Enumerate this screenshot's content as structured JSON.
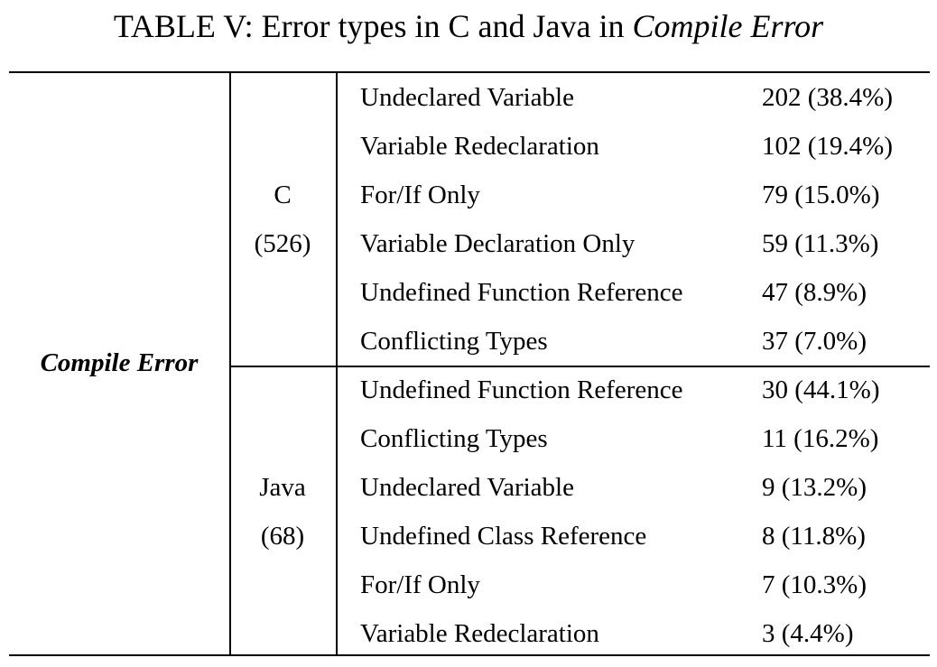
{
  "caption": {
    "prefix": "TABLE V: Error types in C and Java in ",
    "italic": "Compile Error"
  },
  "table": {
    "category": "Compile Error",
    "groups": [
      {
        "language": "C",
        "total": "(526)",
        "rows": [
          {
            "type": "Undeclared Variable",
            "count": "202 (38.4%)"
          },
          {
            "type": "Variable Redeclaration",
            "count": "102 (19.4%)"
          },
          {
            "type": "For/If Only",
            "count": "79 (15.0%)"
          },
          {
            "type": "Variable Declaration Only",
            "count": "59 (11.3%)"
          },
          {
            "type": "Undefined Function Reference",
            "count": "47 (8.9%)"
          },
          {
            "type": "Conflicting Types",
            "count": "37 (7.0%)"
          }
        ]
      },
      {
        "language": "Java",
        "total": "(68)",
        "rows": [
          {
            "type": "Undefined Function Reference",
            "count": "30 (44.1%)"
          },
          {
            "type": "Conflicting Types",
            "count": "11 (16.2%)"
          },
          {
            "type": "Undeclared Variable",
            "count": "9 (13.2%)"
          },
          {
            "type": "Undefined Class Reference",
            "count": "8 (11.8%)"
          },
          {
            "type": "For/If Only",
            "count": "7 (10.3%)"
          },
          {
            "type": "Variable Redeclaration",
            "count": "3 (4.4%)"
          }
        ]
      }
    ]
  }
}
